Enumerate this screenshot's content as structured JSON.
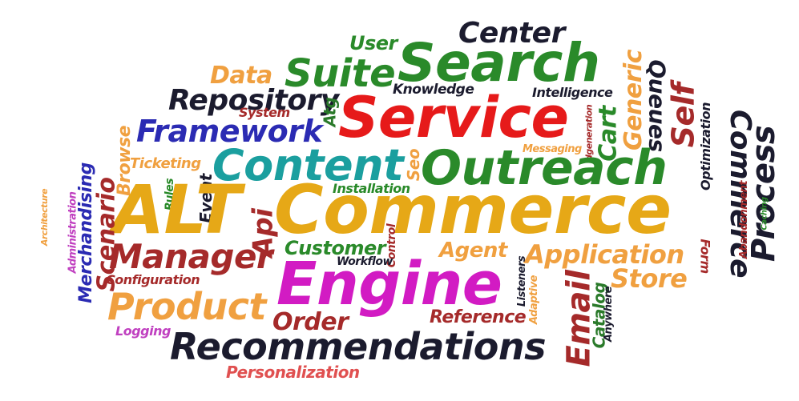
{
  "colors": {
    "gold": "#e6a817",
    "red": "#e61a1a",
    "green": "#2a8a2a",
    "magenta": "#d21bc3",
    "navy": "#1b1b2e",
    "blue": "#2b2bb3",
    "teal": "#1b9f9f",
    "brown": "#a52a2a",
    "orange": "#f0a040",
    "pink": "#e05050",
    "purple": "#c040c0",
    "darkgreen": "#2a7a2a"
  },
  "words": {
    "alt": "ALT",
    "commerce_main": "Commerce",
    "engine": "Engine",
    "service": "Service",
    "search": "Search",
    "outreach": "Outreach",
    "content": "Content",
    "recommendations": "Recommendations",
    "product": "Product",
    "manager": "Manager",
    "suite": "Suite",
    "framework": "Framework",
    "repository": "Repository",
    "center": "Center",
    "user": "User",
    "data": "Data",
    "system": "System",
    "knowledge": "Knowledge",
    "intelligence": "Intelligence",
    "generic": "Generic",
    "queues": "Queues",
    "self": "Self",
    "cart": "Cart",
    "optimization": "Optimization",
    "commerce_vertical": "Commerce",
    "process": "Process",
    "form": "Form",
    "abandonment": "Abandonment",
    "caching": "Caching",
    "messaging": "Messaging",
    "idgeneration": "idgeneration",
    "atg": "Atg",
    "seo": "Seo",
    "installation": "Installation",
    "browse": "Browse",
    "ticketing": "Ticketing",
    "rules": "Rules",
    "event": "Event",
    "api": "Api",
    "merchandising": "Merchandising",
    "scenario": "Scenario",
    "architecture": "Architecture",
    "administration": "Administration",
    "customer": "Customer",
    "control": "Control",
    "workflow": "Workflow",
    "agent": "Agent",
    "application": "Application",
    "store": "Store",
    "configuration": "Configuration",
    "listeners": "Listeners",
    "adaptive": "Adaptive",
    "email": "Email",
    "catalog": "Catalog",
    "anywhere": "Anywhere",
    "reference": "Reference",
    "order": "Order",
    "logging": "Logging",
    "personalization": "Personalization"
  }
}
